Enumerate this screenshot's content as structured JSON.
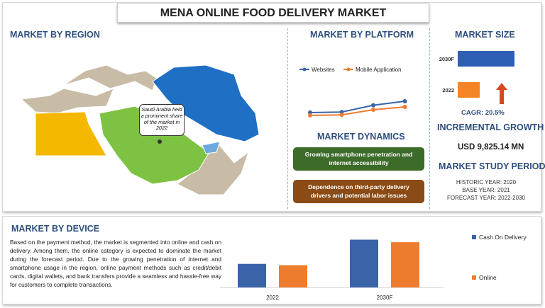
{
  "title": "MENA ONLINE FOOD DELIVERY MARKET",
  "region": {
    "heading": "MARKET BY REGION",
    "callout": "Saudi Arabia held a prominent share of the market in 2022",
    "colors": {
      "saudi_arabia": "#7dc242",
      "egypt": "#f5b800",
      "iran": "#1f6fc5",
      "uae": "#6fa8dc",
      "others": "#c8bca6"
    }
  },
  "platform": {
    "heading": "MARKET BY PLATFORM"
  },
  "dynamics": {
    "heading": "MARKET DYNAMICS",
    "items": [
      {
        "text": "Growing smartphone penetration and internet accessibility",
        "color": "#3d6b2a"
      },
      {
        "text": "Dependence on third-party delivery drivers and potential labor issues",
        "color": "#8a4b16"
      }
    ]
  },
  "market_size": {
    "heading": "MARKET SIZE",
    "cagr": "CAGR:  20.5%",
    "arrow_icon": "up-arrow-icon"
  },
  "incremental": {
    "heading": "INCREMENTAL GROWTH",
    "value": "USD 9,825.14 MN"
  },
  "study": {
    "heading": "MARKET STUDY PERIOD",
    "historic": "HISTORIC YEAR: 2020",
    "base": "BASE YEAR: 2021",
    "forecast": "FORECAST YEAR: 2022-2030"
  },
  "device": {
    "heading": "MARKET BY DEVICE",
    "text": "Based on the payment method, the market is segmented into online and cash on delivery. Among them, the online category is expected to dominate the market during the forecast period. Due to the growing penetration of internet and smartphone usage in the region, online payment methods such as credit/debit cards, digital wallets, and bank transfers provide a seamless and hassle-free way for customers to complete transactions."
  },
  "chart_data": [
    {
      "type": "line",
      "x": [
        1,
        2,
        3,
        4
      ],
      "series": [
        {
          "name": "Websites",
          "values": [
            1.0,
            1.1,
            2.3,
            3.0
          ],
          "color": "#3a63a8"
        },
        {
          "name": "Mobile Application",
          "values": [
            0.5,
            0.6,
            1.5,
            2.0
          ],
          "color": "#ee7c2e"
        }
      ],
      "legend": "top",
      "grid": false
    },
    {
      "type": "bar",
      "orientation": "horizontal",
      "categories": [
        "2030F",
        "2022"
      ],
      "values": [
        80,
        31
      ],
      "colors": [
        "#2e5fb4",
        "#f58426"
      ]
    },
    {
      "type": "bar",
      "categories": [
        "2022",
        "2030F"
      ],
      "series": [
        {
          "name": "Cash On Delivery",
          "values": [
            37,
            75
          ],
          "color": "#3a63a8"
        },
        {
          "name": "Online",
          "values": [
            35,
            71
          ],
          "color": "#ee7c2e"
        }
      ],
      "legend": "right",
      "grid": false
    }
  ]
}
